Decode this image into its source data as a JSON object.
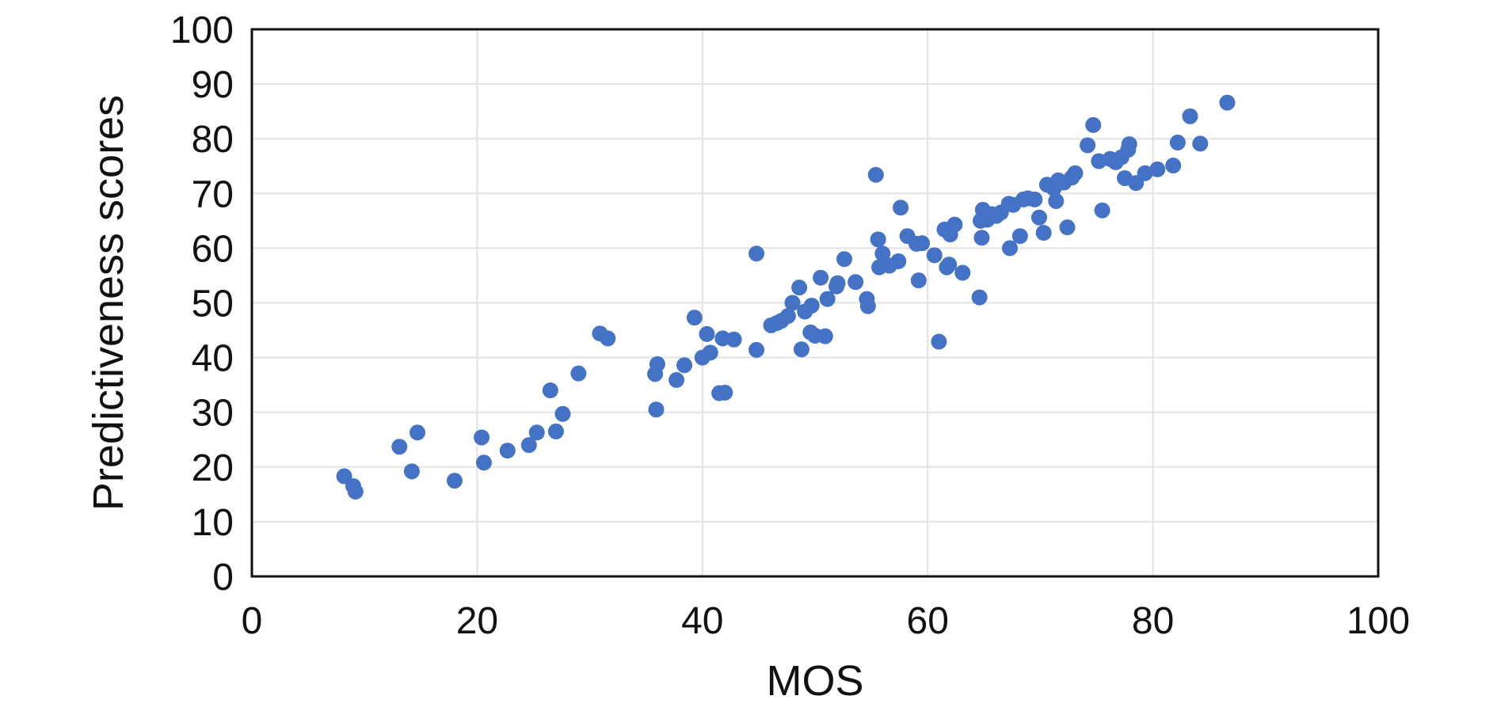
{
  "chart_data": {
    "type": "scatter",
    "title": "",
    "xlabel": "MOS",
    "ylabel": "Predictiveness scores",
    "xlim": [
      0,
      100
    ],
    "ylim": [
      0,
      100
    ],
    "x_ticks": [
      0,
      20,
      40,
      60,
      80,
      100
    ],
    "y_ticks": [
      0,
      10,
      20,
      30,
      40,
      50,
      60,
      70,
      80,
      90,
      100
    ],
    "grid": true,
    "legend": "none",
    "point_color": "#4472C4",
    "points": [
      [
        8.2,
        18.3
      ],
      [
        9.0,
        16.5
      ],
      [
        9.2,
        15.5
      ],
      [
        13.1,
        23.7
      ],
      [
        14.2,
        19.2
      ],
      [
        14.7,
        26.3
      ],
      [
        18.0,
        17.5
      ],
      [
        20.4,
        25.4
      ],
      [
        20.6,
        20.8
      ],
      [
        22.7,
        23.0
      ],
      [
        24.6,
        24.0
      ],
      [
        25.3,
        26.3
      ],
      [
        26.5,
        34.0
      ],
      [
        27.0,
        26.5
      ],
      [
        27.6,
        29.7
      ],
      [
        29.0,
        37.1
      ],
      [
        30.9,
        44.4
      ],
      [
        31.6,
        43.5
      ],
      [
        35.8,
        37.0
      ],
      [
        36.0,
        38.8
      ],
      [
        35.9,
        30.5
      ],
      [
        37.7,
        35.9
      ],
      [
        38.4,
        38.6
      ],
      [
        39.3,
        47.3
      ],
      [
        40.0,
        40.0
      ],
      [
        40.4,
        44.3
      ],
      [
        40.7,
        40.9
      ],
      [
        41.5,
        33.5
      ],
      [
        42.0,
        33.6
      ],
      [
        41.8,
        43.5
      ],
      [
        42.8,
        43.3
      ],
      [
        44.8,
        41.4
      ],
      [
        44.8,
        59.0
      ],
      [
        46.1,
        45.9
      ],
      [
        46.6,
        46.3
      ],
      [
        47.0,
        46.7
      ],
      [
        47.6,
        47.6
      ],
      [
        48.0,
        50.0
      ],
      [
        48.6,
        52.8
      ],
      [
        48.8,
        41.5
      ],
      [
        49.1,
        48.4
      ],
      [
        49.7,
        49.5
      ],
      [
        49.6,
        44.6
      ],
      [
        50.0,
        44.0
      ],
      [
        50.5,
        54.6
      ],
      [
        50.9,
        43.9
      ],
      [
        51.1,
        50.7
      ],
      [
        51.9,
        53.0
      ],
      [
        52.0,
        53.6
      ],
      [
        52.6,
        58.0
      ],
      [
        53.6,
        53.8
      ],
      [
        54.6,
        50.7
      ],
      [
        54.7,
        49.4
      ],
      [
        55.4,
        73.4
      ],
      [
        55.6,
        61.6
      ],
      [
        55.7,
        56.5
      ],
      [
        56.0,
        59.0
      ],
      [
        56.6,
        56.8
      ],
      [
        57.4,
        57.6
      ],
      [
        57.6,
        67.4
      ],
      [
        58.2,
        62.2
      ],
      [
        59.0,
        60.8
      ],
      [
        59.2,
        54.1
      ],
      [
        59.5,
        60.9
      ],
      [
        60.6,
        58.7
      ],
      [
        61.0,
        42.9
      ],
      [
        61.5,
        63.4
      ],
      [
        61.7,
        56.5
      ],
      [
        61.9,
        57.0
      ],
      [
        62.0,
        62.5
      ],
      [
        62.4,
        64.3
      ],
      [
        63.1,
        55.5
      ],
      [
        64.6,
        51.0
      ],
      [
        64.8,
        61.9
      ],
      [
        64.7,
        65.0
      ],
      [
        64.9,
        67.0
      ],
      [
        65.3,
        65.2
      ],
      [
        65.7,
        66.2
      ],
      [
        66.1,
        65.9
      ],
      [
        66.5,
        66.5
      ],
      [
        67.2,
        68.1
      ],
      [
        67.3,
        60.0
      ],
      [
        67.6,
        67.9
      ],
      [
        68.2,
        62.2
      ],
      [
        68.5,
        68.9
      ],
      [
        68.9,
        69.1
      ],
      [
        69.5,
        68.9
      ],
      [
        69.9,
        65.6
      ],
      [
        70.3,
        62.8
      ],
      [
        70.6,
        71.6
      ],
      [
        71.2,
        70.9
      ],
      [
        71.4,
        68.6
      ],
      [
        71.6,
        72.4
      ],
      [
        72.1,
        72.0
      ],
      [
        72.4,
        63.8
      ],
      [
        72.8,
        72.9
      ],
      [
        73.1,
        73.7
      ],
      [
        74.2,
        78.8
      ],
      [
        74.7,
        82.5
      ],
      [
        75.2,
        75.9
      ],
      [
        75.5,
        66.9
      ],
      [
        76.2,
        76.3
      ],
      [
        76.7,
        75.7
      ],
      [
        77.2,
        76.6
      ],
      [
        77.5,
        72.8
      ],
      [
        77.8,
        78.0
      ],
      [
        77.9,
        79.0
      ],
      [
        78.5,
        71.9
      ],
      [
        79.3,
        73.7
      ],
      [
        80.4,
        74.4
      ],
      [
        81.8,
        75.1
      ],
      [
        82.2,
        79.3
      ],
      [
        83.3,
        84.1
      ],
      [
        84.2,
        79.1
      ],
      [
        86.6,
        86.6
      ]
    ]
  }
}
